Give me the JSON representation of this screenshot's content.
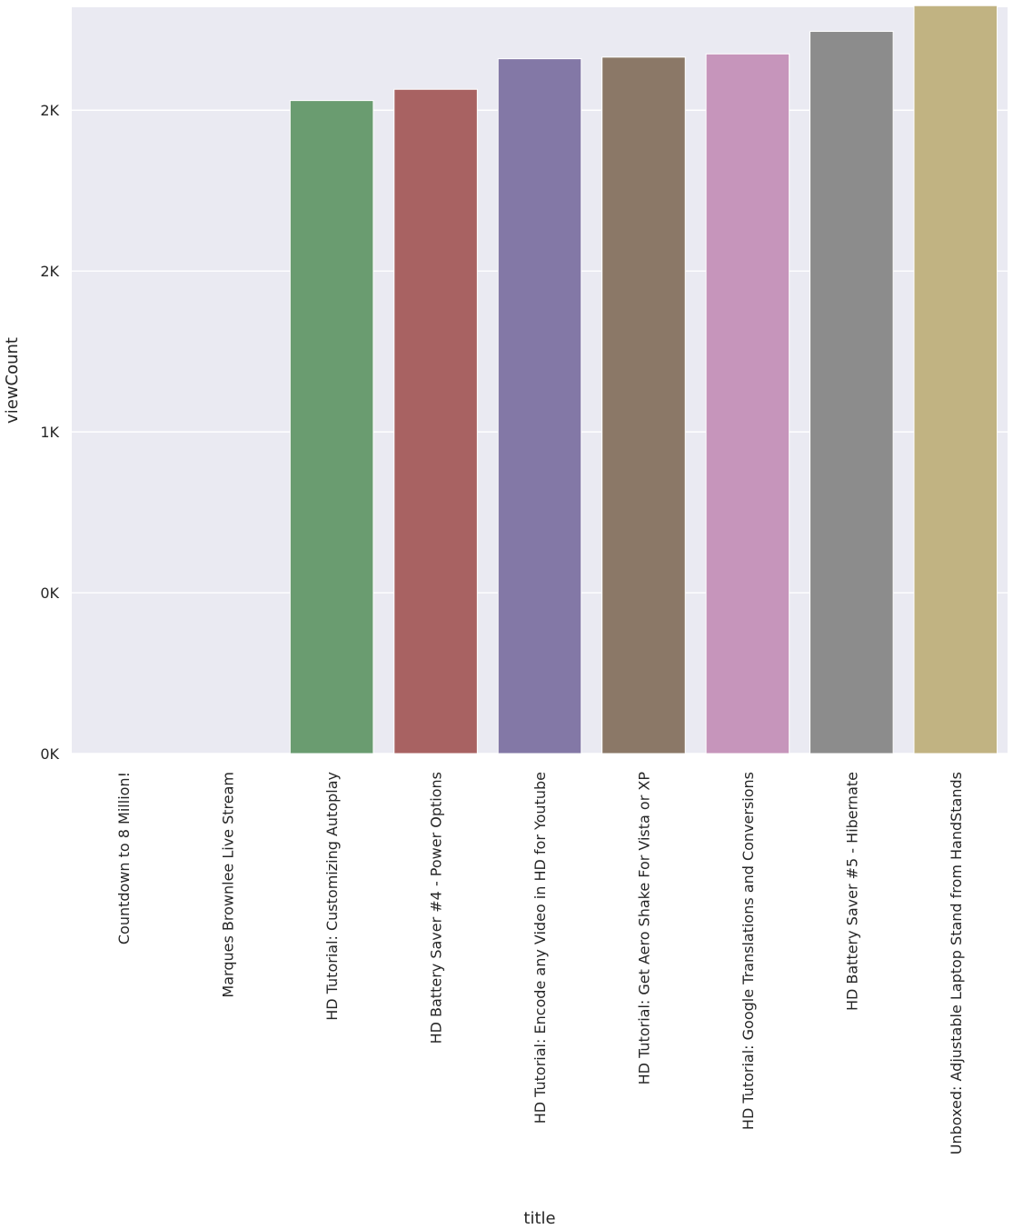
{
  "chart_data": {
    "type": "bar",
    "xlabel": "title",
    "ylabel": "viewCount",
    "ylim": [
      0,
      2320
    ],
    "grid": true,
    "background_color": "#eaeaf2",
    "grid_color": "#ffffff",
    "y_ticks": [
      {
        "value": 0,
        "label": "0K"
      },
      {
        "value": 500,
        "label": "0K"
      },
      {
        "value": 1000,
        "label": "1K"
      },
      {
        "value": 1500,
        "label": "2K"
      },
      {
        "value": 2000,
        "label": "2K"
      }
    ],
    "categories": [
      "Countdown to 8 Million!",
      "Marques Brownlee Live Stream",
      "HD Tutorial: Customizing Autoplay",
      "HD Battery Saver #4 - Power Options",
      "HD Tutorial: Encode any Video in HD for Youtube",
      "HD Tutorial: Get Aero Shake For Vista or XP",
      "HD Tutorial: Google Translations and Conversions",
      "HD Battery Saver #5 - Hibernate",
      "Unboxed: Adjustable Laptop Stand from HandStands"
    ],
    "values": [
      0,
      0,
      2030,
      2065,
      2160,
      2165,
      2175,
      2245,
      2325
    ],
    "colors": [
      "#4c72b0",
      "#dd8452",
      "#6a9c70",
      "#a86262",
      "#8378a6",
      "#8b7867",
      "#c695bb",
      "#8c8c8c",
      "#c1b382"
    ]
  }
}
